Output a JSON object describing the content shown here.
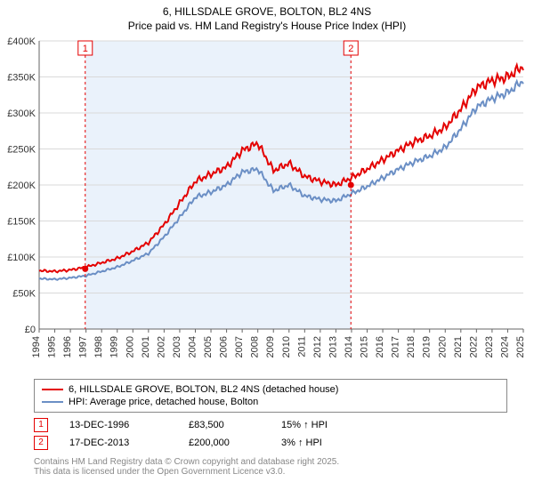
{
  "title_line1": "6, HILLSDALE GROVE, BOLTON, BL2 4NS",
  "title_line2": "Price paid vs. HM Land Registry's House Price Index (HPI)",
  "chart": {
    "type": "line",
    "background_color": "#ffffff",
    "shaded_band_color": "#eaf2fb",
    "grid_color": "#d9d9d9",
    "axis_color": "#666666",
    "x_years": [
      1994,
      1995,
      1996,
      1997,
      1998,
      1999,
      2000,
      2001,
      2002,
      2003,
      2004,
      2005,
      2006,
      2007,
      2008,
      2009,
      2010,
      2011,
      2012,
      2013,
      2014,
      2015,
      2016,
      2017,
      2018,
      2019,
      2020,
      2021,
      2022,
      2023,
      2024,
      2025
    ],
    "ylim": [
      0,
      400000
    ],
    "ytick_step": 50000,
    "ytick_labels": [
      "£0",
      "£50K",
      "£100K",
      "£150K",
      "£200K",
      "£250K",
      "£300K",
      "£350K",
      "£400K"
    ],
    "series_property": {
      "label": "6, HILLSDALE GROVE, BOLTON, BL2 4NS (detached house)",
      "color": "#e40000",
      "line_width": 2,
      "values_by_year": {
        "1994": 81000,
        "1995": 80000,
        "1996": 82000,
        "1997": 86000,
        "1998": 92000,
        "1999": 98000,
        "2000": 108000,
        "2001": 120000,
        "2002": 145000,
        "2003": 175000,
        "2004": 205000,
        "2005": 215000,
        "2006": 225000,
        "2007": 248000,
        "2008": 258000,
        "2009": 220000,
        "2010": 230000,
        "2011": 212000,
        "2012": 205000,
        "2013": 200000,
        "2014": 210000,
        "2015": 222000,
        "2016": 235000,
        "2017": 248000,
        "2018": 260000,
        "2019": 268000,
        "2020": 280000,
        "2021": 305000,
        "2022": 335000,
        "2023": 345000,
        "2024": 350000,
        "2025": 365000
      }
    },
    "series_hpi": {
      "label": "HPI: Average price, detached house, Bolton",
      "color": "#6b8fc5",
      "line_width": 2,
      "values_by_year": {
        "1994": 70000,
        "1995": 69000,
        "1996": 71000,
        "1997": 74000,
        "1998": 80000,
        "1999": 86000,
        "2000": 95000,
        "2001": 105000,
        "2002": 128000,
        "2003": 155000,
        "2004": 183000,
        "2005": 190000,
        "2006": 200000,
        "2007": 218000,
        "2008": 222000,
        "2009": 192000,
        "2010": 200000,
        "2011": 185000,
        "2012": 180000,
        "2013": 178000,
        "2014": 188000,
        "2015": 198000,
        "2016": 210000,
        "2017": 222000,
        "2018": 232000,
        "2019": 240000,
        "2020": 252000,
        "2021": 278000,
        "2022": 308000,
        "2023": 320000,
        "2024": 328000,
        "2025": 345000
      }
    },
    "sale_markers": [
      {
        "n": "1",
        "year": 1996.95,
        "price": 83500
      },
      {
        "n": "2",
        "year": 2013.96,
        "price": 200000
      }
    ],
    "shaded_band": {
      "from_year": 1996.95,
      "to_year": 2013.96
    }
  },
  "sales": [
    {
      "n": "1",
      "date": "13-DEC-1996",
      "price": "£83,500",
      "hpi": "15% ↑ HPI"
    },
    {
      "n": "2",
      "date": "17-DEC-2013",
      "price": "£200,000",
      "hpi": "3% ↑ HPI"
    }
  ],
  "footer_line1": "Contains HM Land Registry data © Crown copyright and database right 2025.",
  "footer_line2": "This data is licensed under the Open Government Licence v3.0."
}
